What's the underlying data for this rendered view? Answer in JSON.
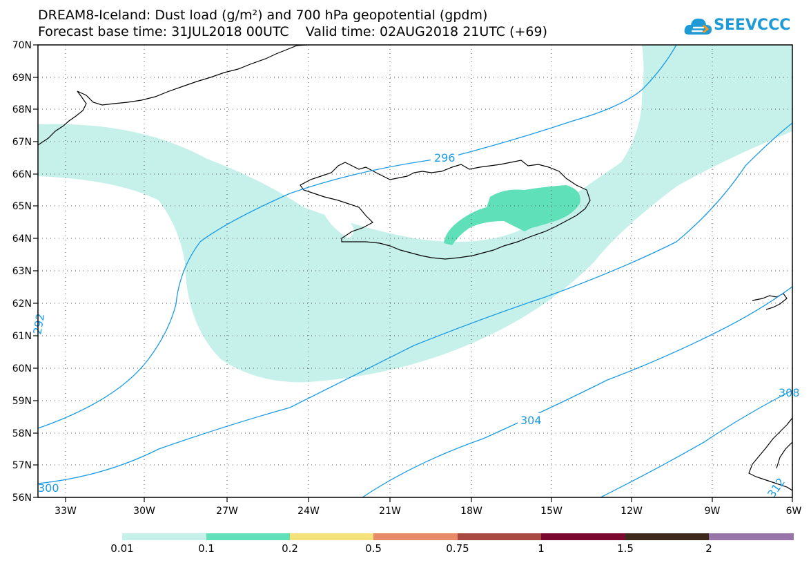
{
  "header": {
    "title_line1": "DREAM8-Iceland: Dust load (g/m²) and 700 hPa geopotential (gpdm)",
    "title_line2": "Forecast base time: 31JUL2018 00UTC    Valid time: 02AUG2018 21UTC (+69)",
    "logo_text": "SEEVCCC"
  },
  "map": {
    "lat_labels": [
      "70N",
      "69N",
      "68N",
      "67N",
      "66N",
      "65N",
      "64N",
      "63N",
      "62N",
      "61N",
      "60N",
      "59N",
      "58N",
      "57N",
      "56N"
    ],
    "lon_labels": [
      "33W",
      "30W",
      "27W",
      "24W",
      "21W",
      "18W",
      "15W",
      "12W",
      "9W",
      "6W"
    ],
    "contour_labels": [
      "296",
      "292",
      "304",
      "300",
      "308",
      "312"
    ],
    "colors": {
      "contour": "#1a9be6",
      "dust_low": "#c6f0ea",
      "dust_mid": "#5fe0b8",
      "coast": "#000000"
    }
  },
  "legend": {
    "labels": [
      "0.01",
      "0.1",
      "0.2",
      "0.5",
      "0.75",
      "1",
      "1.5",
      "2"
    ],
    "colors": [
      "#c6f0ea",
      "#5fe0b8",
      "#f6e27a",
      "#e88a68",
      "#a84a42",
      "#7c0a30",
      "#3d2a1a",
      "#9874a8"
    ]
  }
}
